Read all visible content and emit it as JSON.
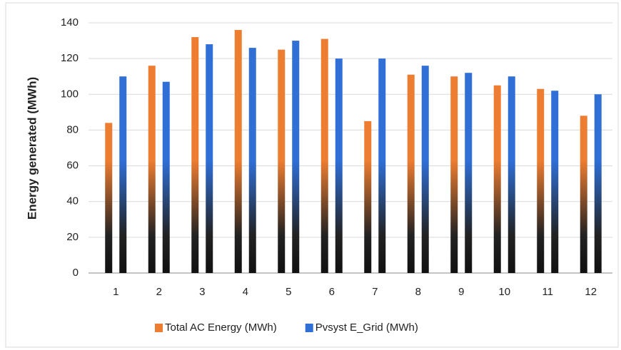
{
  "chart_data": {
    "type": "bar",
    "y_label": "Energy generated (MWh)",
    "categories": [
      "1",
      "2",
      "3",
      "4",
      "5",
      "6",
      "7",
      "8",
      "9",
      "10",
      "11",
      "12"
    ],
    "series": [
      {
        "name": "Total AC Energy (MWh)",
        "color": "#ed7d31",
        "values": [
          84,
          116,
          132,
          136,
          125,
          131,
          85,
          111,
          110,
          105,
          103,
          88
        ]
      },
      {
        "name": "Pvsyst E_Grid (MWh)",
        "color": "#2f6fd6",
        "values": [
          110,
          107,
          128,
          126,
          130,
          120,
          120,
          116,
          112,
          110,
          102,
          100
        ]
      }
    ],
    "ylim": [
      0,
      140
    ],
    "yticks": [
      0,
      20,
      40,
      60,
      80,
      100,
      120,
      140
    ],
    "grid": true,
    "legend": "bottom"
  }
}
